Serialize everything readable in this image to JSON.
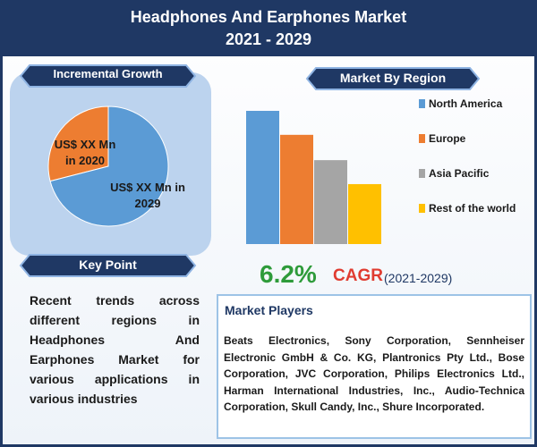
{
  "header": {
    "title": "Headphones And Earphones Market",
    "subtitle": "2021 - 2029"
  },
  "incremental_growth": {
    "heading": "Incremental Growth"
  },
  "key_point": {
    "heading": "Key Point",
    "text": "Recent trends across different regions in Headphones And Earphones Market for various applications in various industries"
  },
  "region": {
    "heading": "Market By Region"
  },
  "cagr": {
    "value": "6.2%",
    "label": "CAGR",
    "period": "(2021-2029)"
  },
  "market_players": {
    "heading": "Market Players",
    "text": "Beats Electronics, Sony Corporation, Sennheiser Electronic GmbH & Co. KG, Plantronics Pty Ltd., Bose Corporation, JVC Corporation, Philips Electronics Ltd., Harman International Industries, Inc., Audio-Technica Corporation, Skull Candy, Inc., Shure Incorporated."
  },
  "chart_data": [
    {
      "type": "pie",
      "categories": [
        "US$ XX Mn in 2020",
        "US$ XX Mn in 2029"
      ],
      "values": [
        29,
        71
      ],
      "colors": [
        "#ed7d31",
        "#5b9bd5"
      ]
    },
    {
      "type": "bar",
      "categories": [
        "North America",
        "Europe",
        "Asia Pacific",
        "Rest of the world"
      ],
      "values": [
        100,
        82,
        63,
        45
      ],
      "colors": [
        "#5b9bd5",
        "#ed7d31",
        "#a5a5a5",
        "#ffc000"
      ],
      "ylim": [
        0,
        100
      ]
    }
  ]
}
